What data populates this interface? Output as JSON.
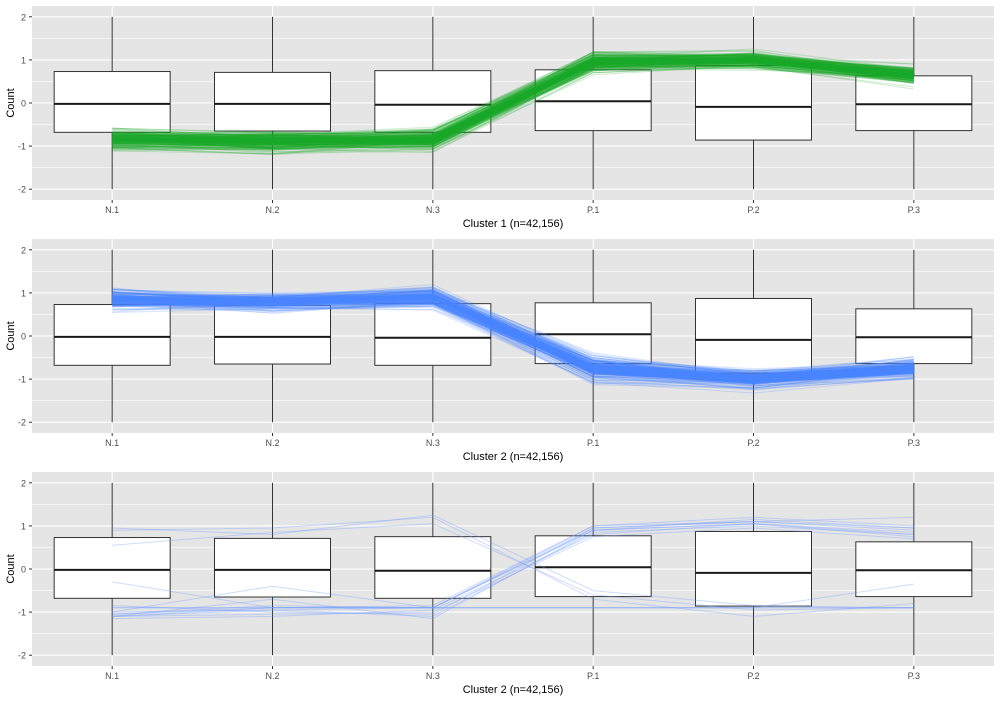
{
  "colors": {
    "panel_background": "#e5e5e5",
    "grid_line": "#ffffff",
    "box_fill": "#ffffff",
    "box_stroke": "#333333",
    "tick_text": "#4d4d4d",
    "cluster1_line": "#1aaa2a",
    "cluster2_line": "#4a86ff",
    "cluster3_line": "#6f9bff"
  },
  "chart_data": [
    {
      "type": "box-and-parallel-lines",
      "title": "",
      "xlabel": "Cluster 1 (n=42,156)",
      "ylabel": "Count",
      "categories": [
        "N.1",
        "N.2",
        "N.3",
        "P.1",
        "P.2",
        "P.3"
      ],
      "ylim": [
        -2.25,
        2.25
      ],
      "yticks": [
        -2,
        -1,
        0,
        1,
        2
      ],
      "grid": true,
      "boxes": [
        {
          "category": "N.1",
          "q1": -0.68,
          "median": -0.02,
          "q3": 0.73,
          "whisker_low": -2.0,
          "whisker_high": 2.0
        },
        {
          "category": "N.2",
          "q1": -0.65,
          "median": -0.02,
          "q3": 0.71,
          "whisker_low": -2.0,
          "whisker_high": 2.0
        },
        {
          "category": "N.3",
          "q1": -0.68,
          "median": -0.04,
          "q3": 0.75,
          "whisker_low": -2.0,
          "whisker_high": 2.0
        },
        {
          "category": "P.1",
          "q1": -0.64,
          "median": 0.04,
          "q3": 0.77,
          "whisker_low": -2.0,
          "whisker_high": 2.0
        },
        {
          "category": "P.2",
          "q1": -0.86,
          "median": -0.09,
          "q3": 0.87,
          "whisker_low": -2.0,
          "whisker_high": 2.0
        },
        {
          "category": "P.3",
          "q1": -0.64,
          "median": -0.03,
          "q3": 0.63,
          "whisker_low": -2.0,
          "whisker_high": 2.0
        }
      ],
      "line_profile": {
        "center": [
          -0.85,
          -0.9,
          -0.85,
          0.95,
          1.0,
          0.65
        ],
        "spread": [
          0.28,
          0.3,
          0.3,
          0.25,
          0.22,
          0.25
        ],
        "count": 160
      },
      "line_color_key": "cluster1_line"
    },
    {
      "type": "box-and-parallel-lines",
      "title": "",
      "xlabel": "Cluster 2 (n=42,156)",
      "ylabel": "Count",
      "categories": [
        "N.1",
        "N.2",
        "N.3",
        "P.1",
        "P.2",
        "P.3"
      ],
      "ylim": [
        -2.25,
        2.25
      ],
      "yticks": [
        -2,
        -1,
        0,
        1,
        2
      ],
      "grid": true,
      "boxes": [
        {
          "category": "N.1",
          "q1": -0.68,
          "median": -0.02,
          "q3": 0.73,
          "whisker_low": -2.0,
          "whisker_high": 2.0
        },
        {
          "category": "N.2",
          "q1": -0.65,
          "median": -0.02,
          "q3": 0.71,
          "whisker_low": -2.0,
          "whisker_high": 2.0
        },
        {
          "category": "N.3",
          "q1": -0.68,
          "median": -0.04,
          "q3": 0.75,
          "whisker_low": -2.0,
          "whisker_high": 2.0
        },
        {
          "category": "P.1",
          "q1": -0.64,
          "median": 0.04,
          "q3": 0.77,
          "whisker_low": -2.0,
          "whisker_high": 2.0
        },
        {
          "category": "P.2",
          "q1": -0.86,
          "median": -0.09,
          "q3": 0.87,
          "whisker_low": -2.0,
          "whisker_high": 2.0
        },
        {
          "category": "P.3",
          "q1": -0.64,
          "median": -0.03,
          "q3": 0.63,
          "whisker_low": -2.0,
          "whisker_high": 2.0
        }
      ],
      "line_profile": {
        "center": [
          0.85,
          0.8,
          0.9,
          -0.75,
          -1.0,
          -0.75
        ],
        "spread": [
          0.28,
          0.25,
          0.28,
          0.35,
          0.25,
          0.28
        ],
        "count": 160
      },
      "line_color_key": "cluster2_line"
    },
    {
      "type": "box-and-parallel-lines",
      "title": "",
      "xlabel": "Cluster 2 (n=42,156)",
      "ylabel": "Count",
      "categories": [
        "N.1",
        "N.2",
        "N.3",
        "P.1",
        "P.2",
        "P.3"
      ],
      "ylim": [
        -2.25,
        2.25
      ],
      "yticks": [
        -2,
        -1,
        0,
        1,
        2
      ],
      "grid": true,
      "boxes": [
        {
          "category": "N.1",
          "q1": -0.68,
          "median": -0.02,
          "q3": 0.73,
          "whisker_low": -2.0,
          "whisker_high": 2.0
        },
        {
          "category": "N.2",
          "q1": -0.65,
          "median": -0.02,
          "q3": 0.71,
          "whisker_low": -2.0,
          "whisker_high": 2.0
        },
        {
          "category": "N.3",
          "q1": -0.68,
          "median": -0.04,
          "q3": 0.75,
          "whisker_low": -2.0,
          "whisker_high": 2.0
        },
        {
          "category": "P.1",
          "q1": -0.64,
          "median": 0.04,
          "q3": 0.77,
          "whisker_low": -2.0,
          "whisker_high": 2.0
        },
        {
          "category": "P.2",
          "q1": -0.86,
          "median": -0.09,
          "q3": 0.87,
          "whisker_low": -2.0,
          "whisker_high": 2.0
        },
        {
          "category": "P.3",
          "q1": -0.64,
          "median": -0.03,
          "q3": 0.63,
          "whisker_low": -2.0,
          "whisker_high": 2.0
        }
      ],
      "lines": [
        [
          -1.1,
          -0.9,
          -0.9,
          0.9,
          1.05,
          0.85
        ],
        [
          -1.05,
          -0.85,
          -0.9,
          0.95,
          1.1,
          0.9
        ],
        [
          -1.1,
          -0.95,
          -1.1,
          0.85,
          1.0,
          0.8
        ],
        [
          -1.0,
          -0.4,
          -0.9,
          0.9,
          1.15,
          0.95
        ],
        [
          -1.15,
          -1.1,
          -0.95,
          0.8,
          1.05,
          0.75
        ],
        [
          -1.05,
          -0.9,
          -0.85,
          1.0,
          1.2,
          1.0
        ],
        [
          -1.1,
          -0.7,
          -1.15,
          0.9,
          1.05,
          0.8
        ],
        [
          -0.85,
          -1.0,
          -1.05,
          0.95,
          1.1,
          0.95
        ],
        [
          -1.1,
          -1.05,
          -1.0,
          0.75,
          0.95,
          0.7
        ],
        [
          -1.0,
          -0.95,
          -0.9,
          1.0,
          1.1,
          1.2
        ],
        [
          -0.9,
          -0.9,
          -0.9,
          -0.9,
          -0.9,
          -0.9
        ],
        [
          -0.9,
          -0.9,
          -0.9,
          -0.9,
          -0.9,
          -0.9
        ],
        [
          -0.3,
          -0.9,
          -0.9,
          -0.9,
          -0.9,
          -0.35
        ],
        [
          0.95,
          0.8,
          1.25,
          -0.5,
          -0.85,
          -0.9
        ],
        [
          0.55,
          0.85,
          1.05,
          -0.6,
          -0.95,
          -0.9
        ],
        [
          0.9,
          0.95,
          1.2,
          -0.7,
          -1.1,
          -0.8
        ]
      ],
      "line_color_key": "cluster3_line"
    }
  ]
}
